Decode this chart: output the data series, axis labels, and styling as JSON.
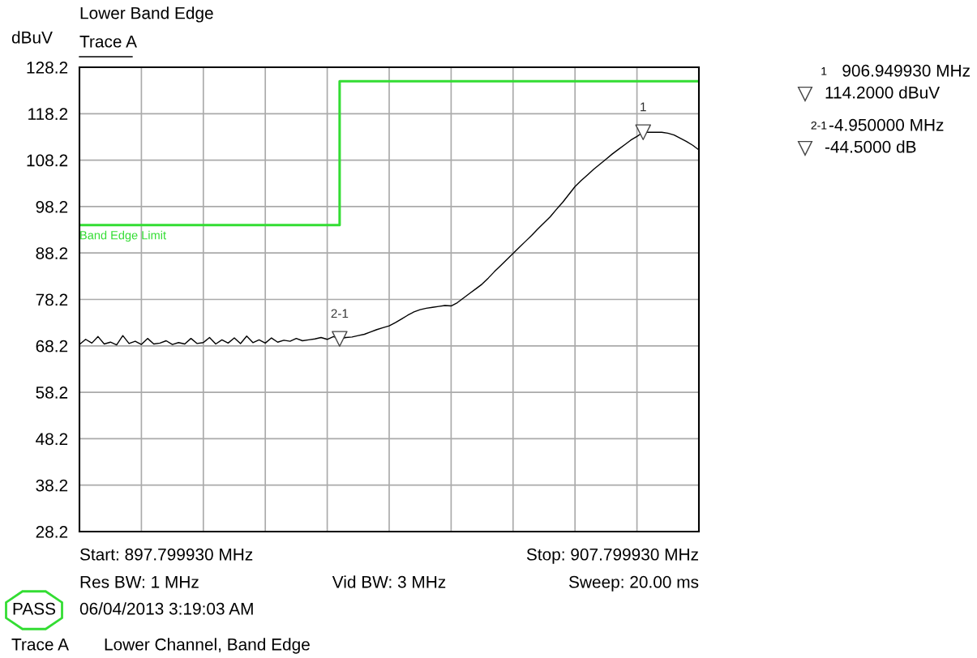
{
  "chart_data": {
    "type": "line",
    "title": "Lower Band Edge",
    "subtitle": "Trace A",
    "ylabel": "dBuV",
    "categories": [
      null,
      null,
      null,
      null,
      null,
      null,
      null,
      null,
      null,
      null,
      null,
      null,
      null,
      null,
      null,
      null,
      null,
      null,
      null,
      null,
      null,
      null,
      null,
      null,
      null,
      null,
      null,
      null,
      null,
      null,
      null,
      null,
      null,
      null,
      null,
      null,
      null,
      null,
      null,
      null,
      null,
      null,
      null,
      null,
      null,
      null,
      null,
      null,
      null,
      null,
      null,
      null,
      null,
      null,
      null,
      null,
      null,
      null,
      null,
      null,
      null,
      null,
      null,
      null,
      null,
      null,
      null,
      null,
      null,
      null,
      null,
      null,
      null,
      null,
      null,
      null,
      null,
      null,
      null,
      null,
      null,
      null,
      null,
      null,
      null,
      null,
      null,
      null,
      null,
      null,
      null,
      null,
      null,
      null,
      null,
      null,
      null,
      null,
      null,
      null,
      null
    ],
    "ylim": [
      28.2,
      128.2
    ],
    "yticks": [
      28.2,
      38.2,
      48.2,
      58.2,
      68.2,
      78.2,
      88.2,
      98.2,
      108.2,
      118.2,
      128.2
    ],
    "tick_labels": "y",
    "grid": true,
    "series": [
      {
        "color": "#000000",
        "values": [
          68.5,
          69.6,
          68.8,
          70.2,
          68.6,
          69.0,
          68.4,
          70.4,
          68.7,
          69.2,
          68.5,
          69.8,
          68.6,
          68.8,
          69.3,
          68.5,
          68.9,
          68.6,
          69.8,
          68.7,
          68.9,
          70.0,
          68.6,
          69.5,
          68.8,
          69.9,
          68.7,
          70.3,
          68.9,
          69.5,
          68.8,
          69.9,
          69.0,
          69.4,
          69.2,
          69.8,
          69.3,
          69.5,
          69.7,
          70.0,
          69.6,
          70.2,
          69.7,
          70.0,
          70.1,
          70.4,
          70.7,
          71.2,
          71.7,
          72.1,
          72.5,
          73.2,
          74.0,
          74.8,
          75.5,
          76.0,
          76.3,
          76.5,
          76.7,
          76.9,
          76.8,
          77.5,
          78.5,
          79.5,
          80.5,
          81.5,
          82.8,
          84.2,
          85.5,
          86.8,
          88.1,
          89.4,
          90.7,
          92.0,
          93.4,
          94.7,
          96.0,
          97.6,
          99.1,
          100.8,
          102.5,
          103.8,
          105.0,
          106.2,
          107.3,
          108.4,
          109.5,
          110.5,
          111.5,
          112.5,
          113.3,
          114.2,
          114.2,
          114.2,
          114.2,
          114.0,
          113.6,
          112.9,
          112.2,
          111.4,
          110.4
        ]
      },
      {
        "type": "step",
        "name": "Band Edge Limit",
        "color": "#33dd33",
        "values": [
          94.2,
          94.2,
          94.2,
          94.2,
          94.2,
          94.2,
          94.2,
          94.2,
          94.2,
          94.2,
          94.2,
          94.2,
          94.2,
          94.2,
          94.2,
          94.2,
          94.2,
          94.2,
          94.2,
          94.2,
          94.2,
          94.2,
          94.2,
          94.2,
          94.2,
          94.2,
          94.2,
          94.2,
          94.2,
          94.2,
          94.2,
          94.2,
          94.2,
          94.2,
          94.2,
          94.2,
          94.2,
          94.2,
          94.2,
          94.2,
          94.2,
          94.2,
          125.2,
          125.2,
          125.2,
          125.2,
          125.2,
          125.2,
          125.2,
          125.2,
          125.2,
          125.2,
          125.2,
          125.2,
          125.2,
          125.2,
          125.2,
          125.2,
          125.2,
          125.2,
          125.2,
          125.2,
          125.2,
          125.2,
          125.2,
          125.2,
          125.2,
          125.2,
          125.2,
          125.2,
          125.2,
          125.2,
          125.2,
          125.2,
          125.2,
          125.2,
          125.2,
          125.2,
          125.2,
          125.2,
          125.2,
          125.2,
          125.2,
          125.2,
          125.2,
          125.2,
          125.2,
          125.2,
          125.2,
          125.2,
          125.2,
          125.2,
          125.2,
          125.2,
          125.2,
          125.2,
          125.2,
          125.2,
          125.2,
          125.2,
          125.2
        ]
      },
      {
        "type": "scatter",
        "color": "#444444",
        "marker": "triangle",
        "values": [
          null,
          null,
          null,
          null,
          null,
          null,
          null,
          null,
          null,
          null,
          null,
          null,
          null,
          null,
          null,
          null,
          null,
          null,
          null,
          null,
          null,
          null,
          null,
          null,
          null,
          null,
          null,
          null,
          null,
          null,
          null,
          null,
          null,
          null,
          null,
          null,
          null,
          null,
          null,
          null,
          null,
          null,
          69.7,
          null,
          null,
          null,
          null,
          null,
          null,
          null,
          null,
          null,
          null,
          null,
          null,
          null,
          null,
          null,
          null,
          null,
          null,
          null,
          null,
          null,
          null,
          null,
          null,
          null,
          null,
          null,
          null,
          null,
          null,
          null,
          null,
          null,
          null,
          null,
          null,
          null,
          null,
          null,
          null,
          null,
          null,
          null,
          null,
          null,
          null,
          null,
          null,
          114.2,
          null,
          null,
          null,
          null,
          null,
          null,
          null,
          null,
          null
        ]
      }
    ],
    "annotations": [
      "2-1",
      "1",
      "1",
      "906.949930 MHz",
      "114.2000 dBuV",
      "2-1",
      "-4.950000 MHz",
      "-44.5000 dB",
      "Start: 897.799930 MHz",
      "Stop: 907.799930 MHz",
      "Res BW: 1 MHz",
      "Vid BW: 3 MHz",
      "Sweep: 20.00 ms",
      "06/04/2013 3:19:03 AM",
      "PASS",
      "Trace A",
      "Lower Channel, Band Edge"
    ]
  }
}
